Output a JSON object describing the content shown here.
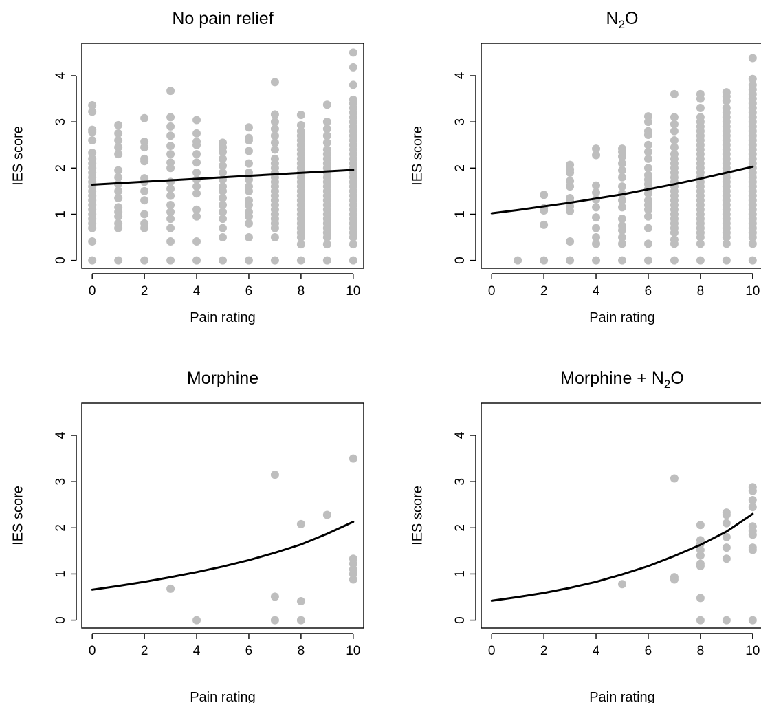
{
  "colors": {
    "point": "#bebebe",
    "line": "#000000"
  },
  "chart_data": [
    {
      "type": "scatter",
      "title": "No pain relief",
      "title_sub": "",
      "title_suffix": "",
      "xlabel": "Pain rating",
      "ylabel": "IES score",
      "xlim": [
        -0.4,
        10.4
      ],
      "ylim": [
        -0.17,
        4.7
      ],
      "xticks": [
        0,
        2,
        4,
        6,
        8,
        10
      ],
      "yticks": [
        0,
        1,
        2,
        3,
        4
      ],
      "fit_line": {
        "x": [
          0,
          10
        ],
        "y": [
          1.64,
          1.96
        ]
      },
      "points": [
        {
          "x": 0,
          "y": [
            0,
            0.41,
            0.7,
            0.8,
            0.9,
            1.0,
            1.1,
            1.2,
            1.3,
            1.4,
            1.5,
            1.6,
            1.7,
            1.8,
            1.9,
            2.0,
            2.1,
            2.2,
            2.33,
            2.6,
            2.78,
            2.83,
            3.22,
            3.36
          ]
        },
        {
          "x": 1,
          "y": [
            0,
            0.7,
            0.8,
            0.95,
            1.05,
            1.15,
            1.35,
            1.5,
            1.65,
            1.8,
            1.95,
            2.3,
            2.45,
            2.6,
            2.75,
            2.93
          ]
        },
        {
          "x": 2,
          "y": [
            0,
            0.7,
            0.8,
            1.0,
            1.3,
            1.5,
            1.7,
            1.78,
            2.15,
            2.2,
            2.45,
            2.57,
            3.08
          ]
        },
        {
          "x": 3,
          "y": [
            0,
            0.41,
            0.7,
            0.9,
            1.05,
            1.2,
            1.4,
            1.55,
            1.7,
            2.0,
            2.12,
            2.3,
            2.48,
            2.7,
            2.9,
            3.1,
            3.67
          ]
        },
        {
          "x": 4,
          "y": [
            0,
            0.41,
            0.95,
            1.1,
            1.45,
            1.6,
            1.75,
            1.9,
            2.12,
            2.3,
            2.5,
            2.57,
            2.75,
            3.04
          ]
        },
        {
          "x": 5,
          "y": [
            0,
            0.5,
            0.7,
            0.9,
            1.05,
            1.2,
            1.35,
            1.5,
            1.6,
            1.75,
            1.9,
            2.05,
            2.2,
            2.35,
            2.45,
            2.55
          ]
        },
        {
          "x": 6,
          "y": [
            0,
            0.5,
            0.8,
            0.95,
            1.05,
            1.2,
            1.3,
            1.5,
            1.6,
            1.75,
            1.9,
            2.1,
            2.37,
            2.6,
            2.65,
            2.88
          ]
        },
        {
          "x": 7,
          "y": [
            0,
            0.5,
            0.7,
            0.8,
            0.9,
            1.0,
            1.1,
            1.2,
            1.3,
            1.4,
            1.5,
            1.6,
            1.7,
            1.8,
            1.9,
            2.0,
            2.1,
            2.2,
            2.4,
            2.55,
            2.7,
            2.85,
            3.0,
            3.16,
            3.86
          ]
        },
        {
          "x": 8,
          "y": [
            0,
            0.35,
            0.5,
            0.6,
            0.7,
            0.8,
            0.9,
            1.0,
            1.1,
            1.2,
            1.3,
            1.4,
            1.5,
            1.6,
            1.7,
            1.8,
            1.9,
            2.0,
            2.1,
            2.2,
            2.3,
            2.4,
            2.5,
            2.6,
            2.7,
            2.8,
            2.93,
            3.15
          ]
        },
        {
          "x": 9,
          "y": [
            0,
            0.35,
            0.5,
            0.6,
            0.7,
            0.8,
            0.9,
            1.0,
            1.1,
            1.2,
            1.3,
            1.4,
            1.5,
            1.6,
            1.7,
            1.8,
            1.9,
            2.0,
            2.1,
            2.2,
            2.3,
            2.4,
            2.55,
            2.7,
            2.85,
            3.0,
            3.37
          ]
        },
        {
          "x": 10,
          "y": [
            0,
            0.35,
            0.5,
            0.6,
            0.7,
            0.8,
            0.9,
            1.0,
            1.1,
            1.2,
            1.3,
            1.4,
            1.5,
            1.6,
            1.7,
            1.8,
            1.9,
            2.0,
            2.1,
            2.2,
            2.3,
            2.4,
            2.5,
            2.6,
            2.7,
            2.8,
            2.9,
            3.0,
            3.1,
            3.2,
            3.3,
            3.4,
            3.48,
            3.8,
            4.18,
            4.5
          ]
        }
      ]
    },
    {
      "type": "scatter",
      "title": "N",
      "title_sub": "2",
      "title_suffix": "O",
      "xlabel": "Pain rating",
      "ylabel": "IES score",
      "xlim": [
        -0.4,
        10.4
      ],
      "ylim": [
        -0.17,
        4.7
      ],
      "xticks": [
        0,
        2,
        4,
        6,
        8,
        10
      ],
      "yticks": [
        0,
        1,
        2,
        3,
        4
      ],
      "fit_line": {
        "x": [
          0,
          1,
          2,
          3,
          4,
          5,
          6,
          7,
          8,
          9,
          10
        ],
        "y": [
          1.02,
          1.09,
          1.17,
          1.25,
          1.34,
          1.43,
          1.54,
          1.65,
          1.77,
          1.9,
          2.03
        ]
      },
      "points": [
        {
          "x": 1,
          "y": [
            0
          ]
        },
        {
          "x": 2,
          "y": [
            0,
            0.77,
            1.08,
            1.13,
            1.42
          ]
        },
        {
          "x": 3,
          "y": [
            0,
            0.41,
            1.07,
            1.17,
            1.28,
            1.35,
            1.6,
            1.72,
            1.9,
            1.97,
            2.07
          ]
        },
        {
          "x": 4,
          "y": [
            0,
            0.36,
            0.5,
            0.7,
            0.93,
            1.15,
            1.32,
            1.47,
            1.62,
            2.28,
            2.42
          ]
        },
        {
          "x": 5,
          "y": [
            0,
            0.36,
            0.5,
            0.65,
            0.75,
            0.9,
            1.15,
            1.3,
            1.45,
            1.6,
            1.8,
            1.95,
            2.1,
            2.25,
            2.35,
            2.42
          ]
        },
        {
          "x": 6,
          "y": [
            0,
            0.36,
            0.7,
            0.95,
            1.1,
            1.2,
            1.3,
            1.45,
            1.55,
            1.65,
            1.75,
            1.85,
            2.0,
            2.2,
            2.35,
            2.5,
            2.72,
            2.8,
            3.0,
            3.12
          ]
        },
        {
          "x": 7,
          "y": [
            0,
            0.36,
            0.45,
            0.6,
            0.7,
            0.8,
            0.9,
            1.0,
            1.1,
            1.2,
            1.3,
            1.4,
            1.5,
            1.6,
            1.7,
            1.8,
            1.9,
            2.0,
            2.1,
            2.2,
            2.3,
            2.45,
            2.6,
            2.8,
            2.95,
            3.1,
            3.6
          ]
        },
        {
          "x": 8,
          "y": [
            0,
            0.36,
            0.5,
            0.6,
            0.7,
            0.8,
            0.9,
            1.0,
            1.1,
            1.2,
            1.3,
            1.4,
            1.5,
            1.6,
            1.7,
            1.8,
            1.9,
            2.0,
            2.1,
            2.2,
            2.3,
            2.4,
            2.5,
            2.6,
            2.7,
            2.8,
            2.9,
            3.0,
            3.1,
            3.3,
            3.5,
            3.6
          ]
        },
        {
          "x": 9,
          "y": [
            0,
            0.36,
            0.5,
            0.6,
            0.7,
            0.8,
            0.9,
            1.0,
            1.1,
            1.2,
            1.3,
            1.4,
            1.5,
            1.6,
            1.7,
            1.8,
            1.9,
            2.0,
            2.1,
            2.2,
            2.3,
            2.4,
            2.5,
            2.6,
            2.7,
            2.8,
            2.9,
            3.0,
            3.1,
            3.2,
            3.3,
            3.45,
            3.55,
            3.64
          ]
        },
        {
          "x": 10,
          "y": [
            0,
            0.36,
            0.5,
            0.6,
            0.7,
            0.8,
            0.9,
            1.0,
            1.1,
            1.2,
            1.3,
            1.4,
            1.5,
            1.6,
            1.7,
            1.8,
            1.9,
            2.0,
            2.1,
            2.2,
            2.3,
            2.4,
            2.5,
            2.6,
            2.7,
            2.8,
            2.9,
            3.0,
            3.1,
            3.2,
            3.3,
            3.4,
            3.5,
            3.6,
            3.7,
            3.8,
            3.93,
            4.38
          ]
        }
      ]
    },
    {
      "type": "scatter",
      "title": "Morphine",
      "title_sub": "",
      "title_suffix": "",
      "xlabel": "Pain rating",
      "ylabel": "IES score",
      "xlim": [
        -0.4,
        10.4
      ],
      "ylim": [
        -0.17,
        4.7
      ],
      "xticks": [
        0,
        2,
        4,
        6,
        8,
        10
      ],
      "yticks": [
        0,
        1,
        2,
        3,
        4
      ],
      "fit_line": {
        "x": [
          0,
          1,
          2,
          3,
          4,
          5,
          6,
          7,
          8,
          9,
          10
        ],
        "y": [
          0.66,
          0.74,
          0.83,
          0.93,
          1.04,
          1.16,
          1.3,
          1.46,
          1.64,
          1.87,
          2.13
        ]
      },
      "points": [
        {
          "x": 3,
          "y": [
            0.68
          ]
        },
        {
          "x": 4,
          "y": [
            0
          ]
        },
        {
          "x": 7,
          "y": [
            0,
            0.51,
            3.15
          ]
        },
        {
          "x": 8,
          "y": [
            0,
            0.41,
            2.08
          ]
        },
        {
          "x": 9,
          "y": [
            2.28
          ]
        },
        {
          "x": 10,
          "y": [
            0.88,
            1.0,
            1.1,
            1.22,
            1.33,
            3.5
          ]
        }
      ]
    },
    {
      "type": "scatter",
      "title": "Morphine + N",
      "title_sub": "2",
      "title_suffix": "O",
      "xlabel": "Pain rating",
      "ylabel": "IES score",
      "xlim": [
        -0.4,
        10.4
      ],
      "ylim": [
        -0.17,
        4.7
      ],
      "xticks": [
        0,
        2,
        4,
        6,
        8,
        10
      ],
      "yticks": [
        0,
        1,
        2,
        3,
        4
      ],
      "fit_line": {
        "x": [
          0,
          1,
          2,
          3,
          4,
          5,
          6,
          7,
          8,
          9,
          10
        ],
        "y": [
          0.42,
          0.5,
          0.59,
          0.7,
          0.83,
          0.99,
          1.17,
          1.39,
          1.63,
          1.92,
          2.3
        ]
      },
      "points": [
        {
          "x": 5,
          "y": [
            0.78
          ]
        },
        {
          "x": 7,
          "y": [
            0.88,
            0.93,
            3.07
          ]
        },
        {
          "x": 8,
          "y": [
            0,
            0.48,
            1.17,
            1.22,
            1.4,
            1.52,
            1.65,
            1.73,
            2.06
          ]
        },
        {
          "x": 9,
          "y": [
            0,
            1.33,
            1.57,
            1.8,
            2.1,
            2.28,
            2.33
          ]
        },
        {
          "x": 10,
          "y": [
            0,
            1.52,
            1.57,
            1.85,
            1.93,
            2.03,
            2.45,
            2.6,
            2.8,
            2.88
          ]
        }
      ]
    }
  ]
}
